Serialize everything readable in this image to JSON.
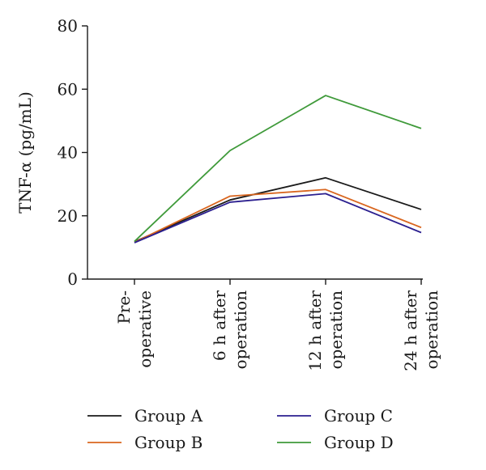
{
  "chart_data": {
    "type": "line",
    "title": "",
    "xlabel": "",
    "ylabel": "TNF-α (pg/mL)",
    "ylim": [
      0,
      80
    ],
    "yticks": [
      0,
      20,
      40,
      60,
      80
    ],
    "categories": [
      [
        "Pre-",
        "operative"
      ],
      [
        "6 h after",
        "operation"
      ],
      [
        "12 h after",
        "operation"
      ],
      [
        "24 h after",
        "operation"
      ]
    ],
    "grid": false,
    "legend_position": "bottom",
    "series": [
      {
        "name": "Group A",
        "color": "#1a1a1a",
        "values": [
          11.8,
          25.0,
          32.0,
          22.0
        ]
      },
      {
        "name": "Group B",
        "color": "#d9661f",
        "values": [
          11.6,
          26.2,
          28.3,
          16.3
        ]
      },
      {
        "name": "Group C",
        "color": "#2b1f8f",
        "values": [
          11.5,
          24.3,
          27.0,
          14.7
        ]
      },
      {
        "name": "Group D",
        "color": "#3f9a3a",
        "values": [
          11.9,
          40.6,
          58.0,
          47.6
        ]
      }
    ]
  }
}
